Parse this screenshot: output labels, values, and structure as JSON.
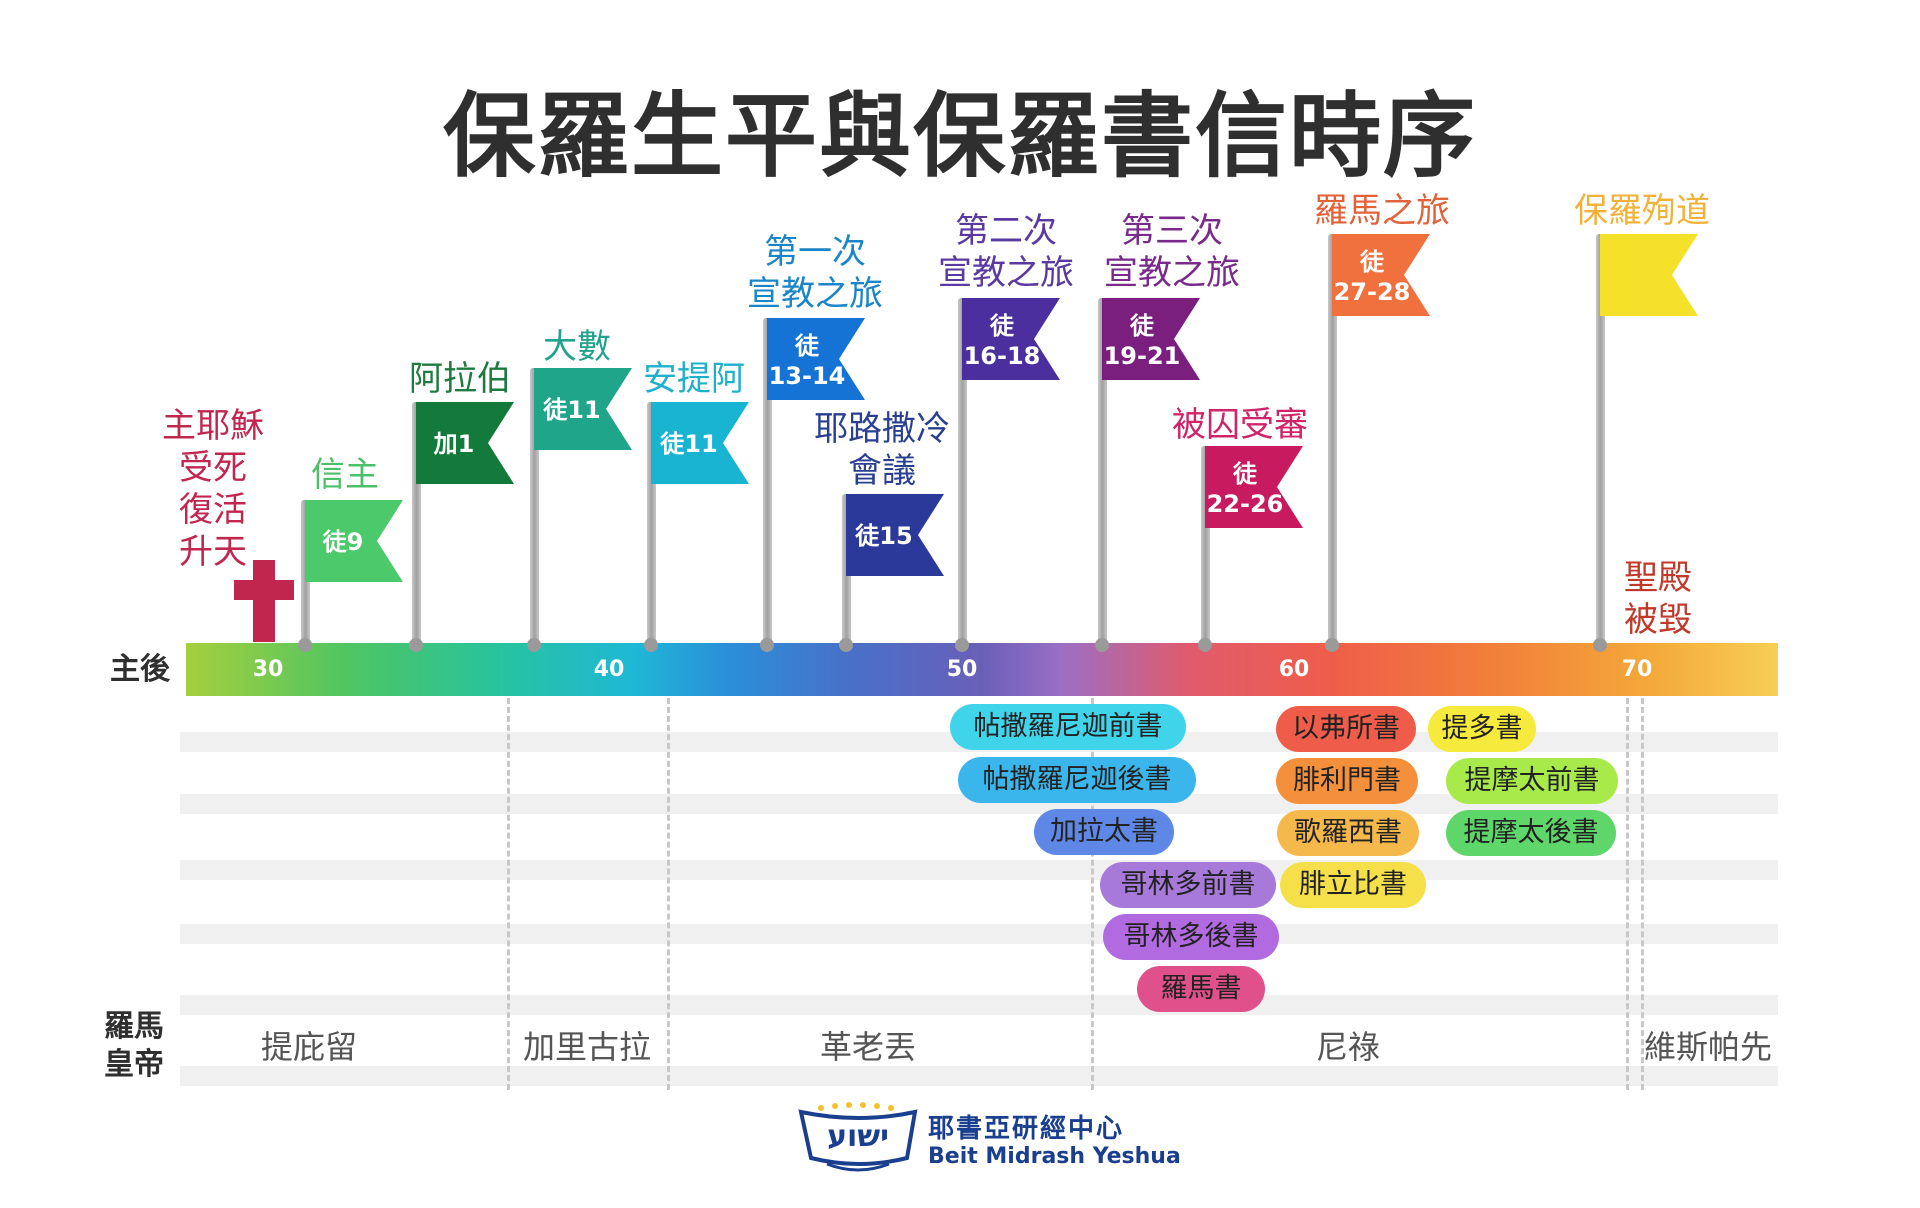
{
  "title": "保羅生平與保羅書信時序",
  "axis": {
    "era_label": "主後",
    "years": [
      "30",
      "40",
      "50",
      "60",
      "70"
    ],
    "emperor_label": "羅馬\n皇帝"
  },
  "events": [
    {
      "label": "主耶穌\n受死\n復活\n升天",
      "color": "#c1264f"
    },
    {
      "label": "信主",
      "color": "#4cbf6a",
      "flag": "徒9",
      "flag_color": "#4cc96a"
    },
    {
      "label": "阿拉伯",
      "color": "#1e7a3e",
      "flag": "加1",
      "flag_color": "#137a3c"
    },
    {
      "label": "大數",
      "color": "#22a38f",
      "flag": "徒11",
      "flag_color": "#1fa58a"
    },
    {
      "label": "安提阿",
      "color": "#1fb0cc",
      "flag": "徒11",
      "flag_color": "#18b4d2"
    },
    {
      "label": "第一次\n宣教之旅",
      "color": "#1a86c7",
      "flag": "徒\n13-14",
      "flag_color": "#1573d6"
    },
    {
      "label": "耶路撒冷\n會議",
      "color": "#2a3f8f",
      "flag": "徒15",
      "flag_color": "#2b3a9a"
    },
    {
      "label": "第二次\n宣教之旅",
      "color": "#5a3aa0",
      "flag": "徒\n16-18",
      "flag_color": "#4b2f9e"
    },
    {
      "label": "第三次\n宣教之旅",
      "color": "#7a2a8a",
      "flag": "徒\n19-21",
      "flag_color": "#7a1f7e"
    },
    {
      "label": "被囚受審",
      "color": "#d0246a",
      "flag": "徒\n22-26",
      "flag_color": "#c81a5e"
    },
    {
      "label": "羅馬之旅",
      "color": "#e2623a",
      "flag": "徒\n27-28",
      "flag_color": "#f0703e"
    },
    {
      "label": "保羅殉道",
      "color": "#f2b23a",
      "flag": "",
      "flag_color": "#f5e02a"
    },
    {
      "label": "聖殿\n被毀",
      "color": "#c0392b"
    }
  ],
  "letters": [
    {
      "name": "帖撒羅尼迦前書",
      "color": "#3fd4ea"
    },
    {
      "name": "帖撒羅尼迦後書",
      "color": "#3ab6ec"
    },
    {
      "name": "加拉太書",
      "color": "#5f88e6"
    },
    {
      "name": "哥林多前書",
      "color": "#a779d8"
    },
    {
      "name": "哥林多後書",
      "color": "#b26ae0"
    },
    {
      "name": "羅馬書",
      "color": "#e0508a"
    },
    {
      "name": "以弗所書",
      "color": "#ef5d4a"
    },
    {
      "name": "腓利門書",
      "color": "#f4903c"
    },
    {
      "name": "歌羅西書",
      "color": "#f5b84a"
    },
    {
      "name": "腓立比書",
      "color": "#f6e04a"
    },
    {
      "name": "提多書",
      "color": "#f6ea3c"
    },
    {
      "name": "提摩太前書",
      "color": "#a8ea4a"
    },
    {
      "name": "提摩太後書",
      "color": "#5ed66a"
    }
  ],
  "emperors": [
    "提庇留",
    "加里古拉",
    "革老丟",
    "尼祿",
    "維斯帕先"
  ],
  "logo": {
    "hebrew": "ישוע",
    "name": "耶書亞研經中心",
    "english": "Beit Midrash Yeshua"
  }
}
